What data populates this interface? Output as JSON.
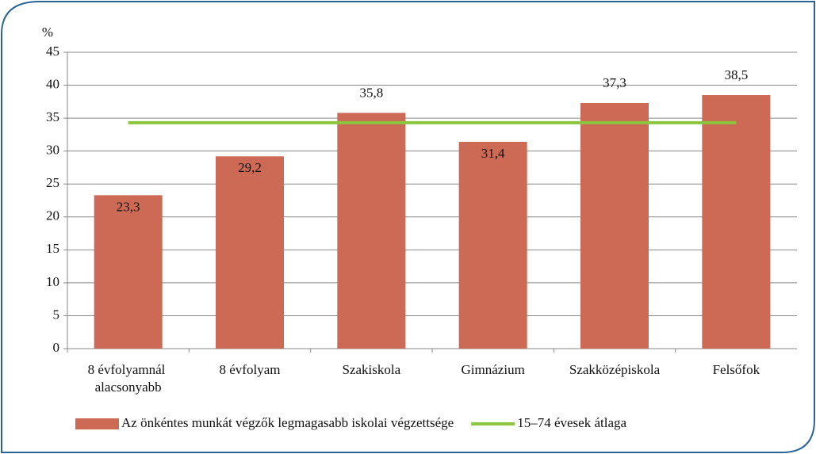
{
  "chart_data": {
    "type": "bar",
    "y_label": "%",
    "categories": [
      "8 évfolyamnál alacsonyabb",
      "8 évfolyam",
      "Szakiskola",
      "Gimnázium",
      "Szakközépiskola",
      "Felsőfok"
    ],
    "series": [
      {
        "name": "Az önkéntes munkát végzők legmagasabb iskolai végzettsége",
        "type": "bar",
        "color": "#cd6a55",
        "values": [
          23.3,
          29.2,
          35.8,
          31.4,
          37.3,
          38.5
        ],
        "value_labels": [
          "23,3",
          "29,2",
          "35,8",
          "31,4",
          "37,3",
          "38,5"
        ]
      },
      {
        "name": "15–74 évesek átlaga",
        "type": "line",
        "color": "#8cc63f",
        "values": [
          34.3,
          34.3,
          34.3,
          34.3,
          34.3,
          34.3
        ]
      }
    ],
    "ylim": [
      0,
      45
    ],
    "yticks": [
      0,
      5,
      10,
      15,
      20,
      25,
      30,
      35,
      40,
      45
    ],
    "grid": true,
    "legend": "bottom"
  }
}
